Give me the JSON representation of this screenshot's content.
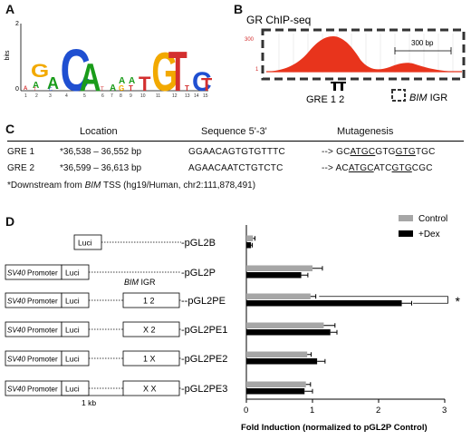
{
  "panels": {
    "a": {
      "letter": "A",
      "ylabel": "bits",
      "ytick_top": "2",
      "ytick_bottom": "0",
      "positions": [
        "1",
        "2",
        "3",
        "4",
        "5",
        "6",
        "7",
        "8",
        "9",
        "10",
        "11",
        "12",
        "13",
        "14",
        "15"
      ]
    },
    "b": {
      "letter": "B",
      "title": "GR ChIP-seq",
      "ytick_top": "300",
      "ytick_bottom": "1",
      "scale_label": "300 bp",
      "gre_label": "GRE 1 2",
      "igr_italic": "BIM",
      "igr_rest": " IGR"
    },
    "c": {
      "letter": "C",
      "headers": {
        "location": "Location",
        "sequence": "Sequence 5'-3'",
        "mutagenesis": "Mutagenesis"
      },
      "rows": [
        {
          "name": "GRE 1",
          "location": "*36,538 – 36,552 bp",
          "sequence": "GGAACAGTGTGTTTC",
          "mut_prefix": "--> "
        },
        {
          "name": "GRE 2",
          "location": "*36,599 – 36,613 bp",
          "sequence": "AGAACAATCTGTCTC",
          "mut_prefix": "--> "
        }
      ],
      "footnote_pre": "*Downstream from ",
      "footnote_italic": "BIM",
      "footnote_post": " TSS (hg19/Human, chr2:111,878,491)"
    },
    "d": {
      "letter": "D",
      "legend": {
        "control": "Control",
        "dex": "+Dex"
      },
      "colors": {
        "control": "#a6a6a6",
        "dex": "#000000"
      },
      "igr_italic": "BIM",
      "igr_rest": " IGR",
      "constructs": [
        {
          "name": "-pGL2B",
          "promoter": "",
          "luci": "Luci",
          "igr": ""
        },
        {
          "name": "-pGL2P",
          "promoter": "SV40 Promoter",
          "luci": "Luci",
          "igr": ""
        },
        {
          "name": "--pGL2PE",
          "promoter": "SV40 Promoter",
          "luci": "Luci",
          "igr": "1  2"
        },
        {
          "name": "-pGL2PE1",
          "promoter": "SV40 Promoter",
          "luci": "Luci",
          "igr": "X  2"
        },
        {
          "name": "-pGL2PE2",
          "promoter": "SV40 Promoter",
          "luci": "Luci",
          "igr": "1  X"
        },
        {
          "name": "-pGL2PE3",
          "promoter": "SV40 Promoter",
          "luci": "Luci",
          "igr": "X  X"
        }
      ],
      "scale_label": "1 kb",
      "significance": "*"
    }
  },
  "chart_data": {
    "type": "bar",
    "orientation": "horizontal",
    "categories": [
      "pGL2B",
      "pGL2P",
      "pGL2PE",
      "pGL2PE1",
      "pGL2PE2",
      "pGL2PE3"
    ],
    "series": [
      {
        "name": "Control",
        "values": [
          0.1,
          1.0,
          0.97,
          1.17,
          0.92,
          0.9
        ],
        "errors": [
          0.03,
          0.15,
          0.08,
          0.17,
          0.06,
          0.07
        ]
      },
      {
        "name": "+Dex",
        "values": [
          0.07,
          0.83,
          2.35,
          1.27,
          1.07,
          0.88
        ],
        "errors": [
          0.02,
          0.1,
          0.15,
          0.1,
          0.12,
          0.12
        ]
      }
    ],
    "xlabel": "Fold Induction (normalized to pGL2P Control)",
    "xticks": [
      "0",
      "1",
      "2",
      "3"
    ],
    "xlim": [
      0,
      3
    ],
    "legend_position": "top-right"
  }
}
